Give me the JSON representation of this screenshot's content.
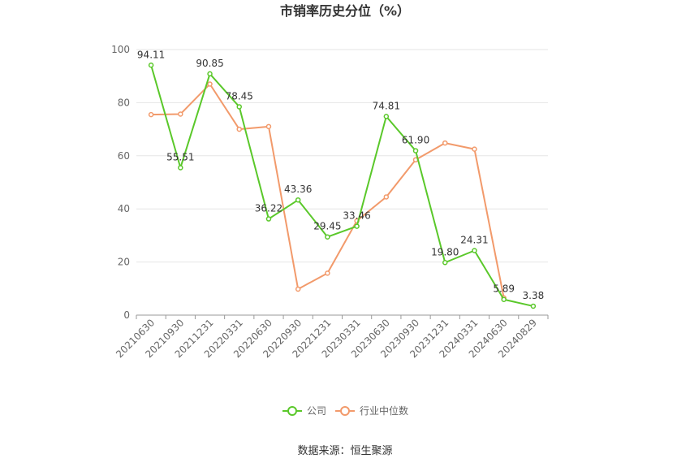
{
  "chart_data": {
    "type": "line",
    "title": "市销率历史分位（%）",
    "categories": [
      "20210630",
      "20210930",
      "20211231",
      "20220331",
      "20220630",
      "20220930",
      "20221231",
      "20230331",
      "20230630",
      "20230930",
      "20231231",
      "20240331",
      "20240630",
      "20240829"
    ],
    "series": [
      {
        "name": "公司",
        "color": "#5ac82a",
        "values": [
          94.11,
          55.51,
          90.85,
          78.45,
          36.22,
          43.36,
          29.45,
          33.46,
          74.81,
          61.9,
          19.8,
          24.31,
          5.89,
          3.38
        ],
        "labels": [
          "94.11",
          "55.51",
          "90.85",
          "78.45",
          "36.22",
          "43.36",
          "29.45",
          "33.46",
          "74.81",
          "61.90",
          "19.80",
          "24.31",
          "5.89",
          "3.38"
        ]
      },
      {
        "name": "行业中位数",
        "color": "#f29a6b",
        "values": [
          75.5,
          75.7,
          87.0,
          70.0,
          71.0,
          9.8,
          15.8,
          35.5,
          44.5,
          58.5,
          64.8,
          62.5,
          6.5,
          null
        ]
      }
    ],
    "ylim": [
      0,
      100
    ],
    "yticks": [
      "0",
      "20",
      "40",
      "60",
      "80",
      "100"
    ],
    "grid": true,
    "legend": "bottom-center"
  },
  "source": "数据来源：恒生聚源"
}
